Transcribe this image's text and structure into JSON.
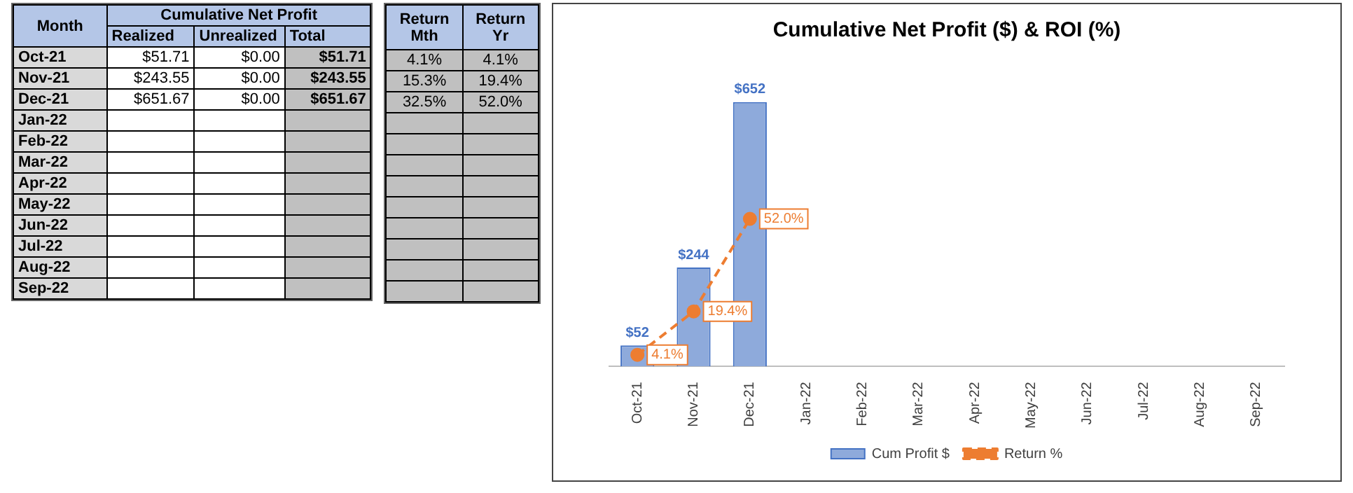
{
  "chart_data": [
    {
      "type": "other",
      "title": "Cumulative Net Profit",
      "ylabel": "Month",
      "categories": [
        "Realized",
        "Unrealized",
        "Total"
      ],
      "y_categories": [
        "Oct-21",
        "Nov-21",
        "Dec-21",
        "Jan-22",
        "Feb-22",
        "Mar-22",
        "Apr-22",
        "May-22",
        "Jun-22",
        "Jul-22",
        "Aug-22",
        "Sep-22"
      ],
      "cell_labels": [
        [
          "$51.71",
          "$0.00",
          "$51.71"
        ],
        [
          "$243.55",
          "$0.00",
          "$243.55"
        ],
        [
          "$651.67",
          "$0.00",
          "$651.67"
        ],
        [
          null,
          null,
          null
        ],
        [
          null,
          null,
          null
        ],
        [
          null,
          null,
          null
        ],
        [
          null,
          null,
          null
        ],
        [
          null,
          null,
          null
        ],
        [
          null,
          null,
          null
        ],
        [
          null,
          null,
          null
        ],
        [
          null,
          null,
          null
        ],
        [
          null,
          null,
          null
        ]
      ]
    },
    {
      "type": "other",
      "categories": [
        "Return Mth",
        "Return Yr"
      ],
      "cell_labels": [
        [
          "4.1%",
          "4.1%"
        ],
        [
          "15.3%",
          "19.4%"
        ],
        [
          "32.5%",
          "52.0%"
        ],
        [
          null,
          null
        ],
        [
          null,
          null
        ],
        [
          null,
          null
        ],
        [
          null,
          null
        ],
        [
          null,
          null
        ],
        [
          null,
          null
        ],
        [
          null,
          null
        ],
        [
          null,
          null
        ],
        [
          null,
          null
        ]
      ]
    },
    {
      "type": "bar",
      "title": "Cumulative Net Profit ($) & ROI (%)",
      "categories": [
        "Oct-21",
        "Nov-21",
        "Dec-21",
        "Jan-22",
        "Feb-22",
        "Mar-22",
        "Apr-22",
        "May-22",
        "Jun-22",
        "Jul-22",
        "Aug-22",
        "Sep-22"
      ],
      "legend": "bottom",
      "tick_labels": "x",
      "series": [
        {
          "name": "Cum Profit $",
          "color": "#8eaadb",
          "values": [
            52,
            244,
            652,
            null,
            null,
            null,
            null,
            null,
            null,
            null,
            null,
            null
          ],
          "value_labels": [
            "$52",
            "$244",
            "$652",
            null,
            null,
            null,
            null,
            null,
            null,
            null,
            null,
            null
          ]
        },
        {
          "name": "Return %",
          "type": "line",
          "axis": "y2",
          "color": "#ed7d31",
          "line_style": "dashed",
          "marker": "circle",
          "values": [
            4.1,
            19.4,
            52.0,
            null,
            null,
            null,
            null,
            null,
            null,
            null,
            null,
            null
          ],
          "value_labels": [
            "4.1%",
            "19.4%",
            "52.0%",
            null,
            null,
            null,
            null,
            null,
            null,
            null,
            null,
            null
          ]
        }
      ]
    }
  ]
}
